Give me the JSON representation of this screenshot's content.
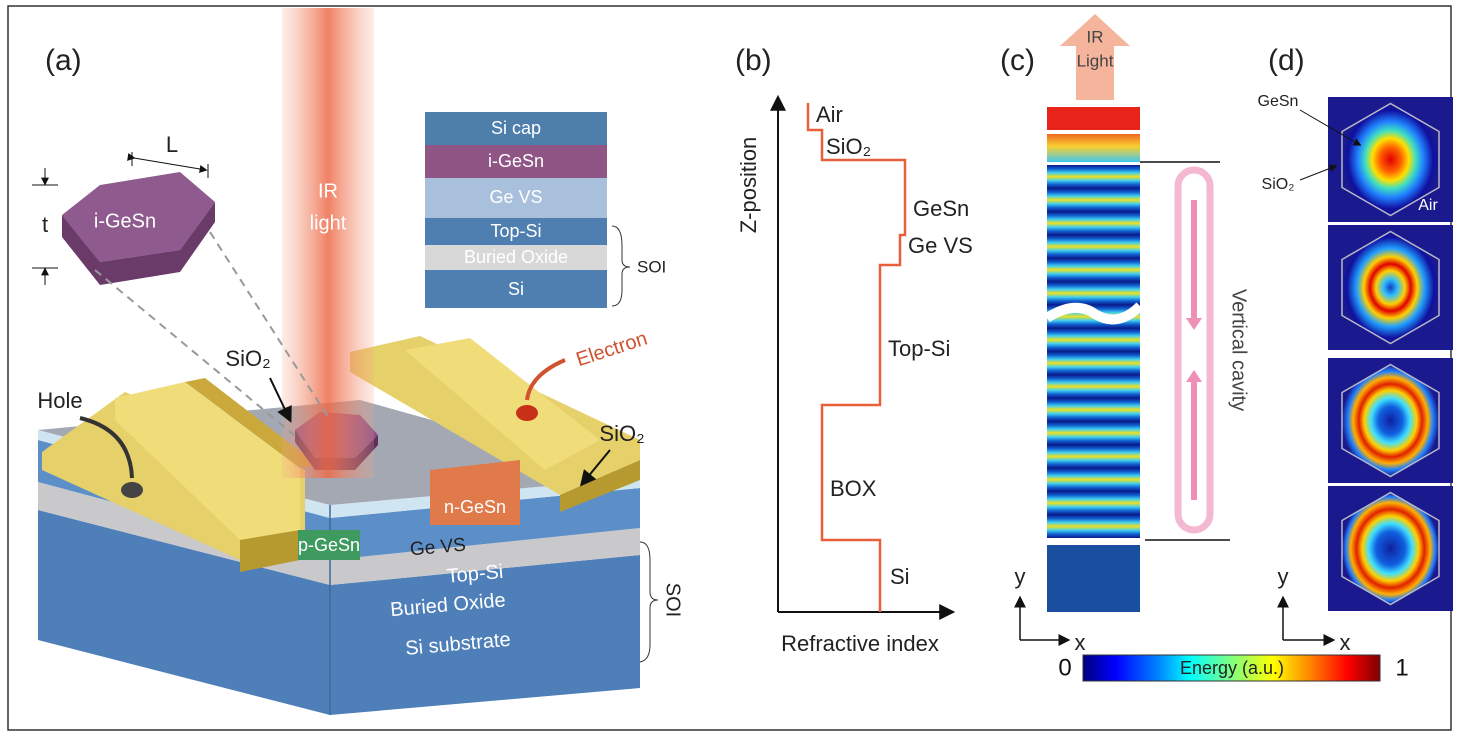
{
  "panel_a": {
    "label": "(a)",
    "hexagon": {
      "length": "L",
      "thickness": "t",
      "material": "i-GeSn"
    },
    "beam": {
      "line1": "IR",
      "line2": "light"
    },
    "stack": {
      "layers": [
        "Si cap",
        "i-GeSn",
        "Ge VS",
        "Top-Si",
        "Buried Oxide",
        "Si"
      ],
      "bracket": "SOI"
    },
    "device": {
      "sio2_top": "SiO₂",
      "electron": "Electron",
      "hole": "Hole",
      "sio2_side": "SiO₂",
      "n_contact": "n-GeSn",
      "p_contact": "p-GeSn",
      "layers": [
        "Ge VS",
        "Top-Si",
        "Buried Oxide",
        "Si substrate"
      ],
      "bracket": "SOI"
    }
  },
  "panel_b": {
    "label": "(b)",
    "y_axis": "Z-position",
    "x_axis": "Refractive index",
    "layers": [
      "Air",
      "SiO₂",
      "GeSn",
      "Ge VS",
      "Top-Si",
      "BOX",
      "Si"
    ]
  },
  "panel_c": {
    "label": "(c)",
    "arrow": {
      "line1": "IR",
      "line2": "Light"
    },
    "cavity": "Vertical cavity",
    "axes": {
      "y": "y",
      "x": "x"
    }
  },
  "panel_d": {
    "label": "(d)",
    "annotations": [
      "GeSn",
      "SiO₂",
      "Air"
    ],
    "axes": {
      "y": "y",
      "x": "x"
    }
  },
  "colorbar": {
    "min": 0,
    "title": "Energy (a.u.)",
    "max": 1
  }
}
